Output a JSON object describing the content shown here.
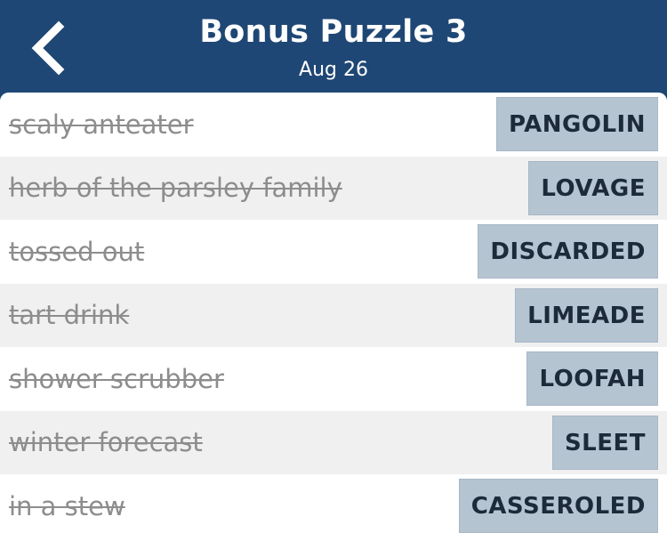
{
  "header": {
    "back_icon": "chevron-left-icon",
    "title": "Bonus Puzzle 3",
    "date": "Aug 26"
  },
  "clues": [
    {
      "clue": "scaly anteater",
      "answer": "PANGOLIN"
    },
    {
      "clue": "herb of the parsley family",
      "answer": "LOVAGE"
    },
    {
      "clue": "tossed out",
      "answer": "DISCARDED"
    },
    {
      "clue": "tart drink",
      "answer": "LIMEADE"
    },
    {
      "clue": "shower scrubber",
      "answer": "LOOFAH"
    },
    {
      "clue": "winter forecast",
      "answer": "SLEET"
    },
    {
      "clue": "in a stew",
      "answer": "CASSEROLED"
    }
  ],
  "colors": {
    "header_bg": "#1f4775",
    "answer_bg": "#b5c4d1",
    "clue_text": "#8d8d8d"
  }
}
